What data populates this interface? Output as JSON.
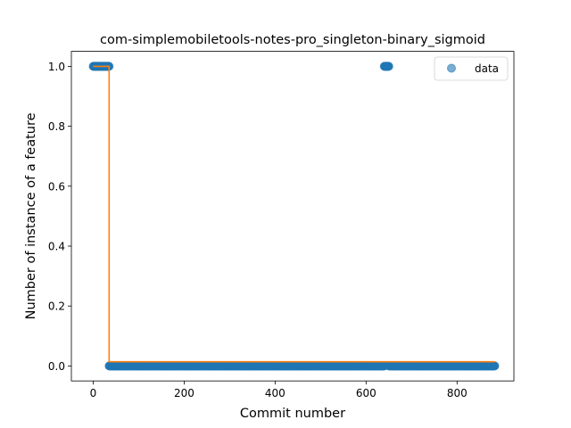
{
  "chart_data": {
    "type": "scatter",
    "title": "com-simplemobiletools-notes-pro_singleton-binary_sigmoid",
    "xlabel": "Commit number",
    "ylabel": "Number of instance of a feature",
    "xlim": [
      -48,
      925
    ],
    "ylim": [
      -0.05,
      1.05
    ],
    "xticks": [
      0,
      200,
      400,
      600,
      800
    ],
    "yticks": [
      0.0,
      0.2,
      0.4,
      0.6,
      0.8,
      1.0
    ],
    "ytick_labels": [
      "0.0",
      "0.2",
      "0.4",
      "0.6",
      "0.8",
      "1.0"
    ],
    "grid": false,
    "legend_position": "top-right",
    "series": [
      {
        "name": "data",
        "kind": "scatter",
        "color": "#1f77b4",
        "alpha": 0.6,
        "segments": [
          {
            "x_start": 0,
            "x_end": 35,
            "y": 1.0
          },
          {
            "x_start": 35,
            "x_end": 640,
            "y": 0.0
          },
          {
            "x_start": 640,
            "x_end": 650,
            "y": 1.0
          },
          {
            "x_start": 650,
            "x_end": 883,
            "y": 0.0
          }
        ]
      },
      {
        "kind": "line",
        "color": "#ff7f0e",
        "points": [
          [
            0,
            1.0
          ],
          [
            35,
            1.0
          ],
          [
            35,
            0.014
          ],
          [
            883,
            0.014
          ]
        ]
      }
    ]
  }
}
